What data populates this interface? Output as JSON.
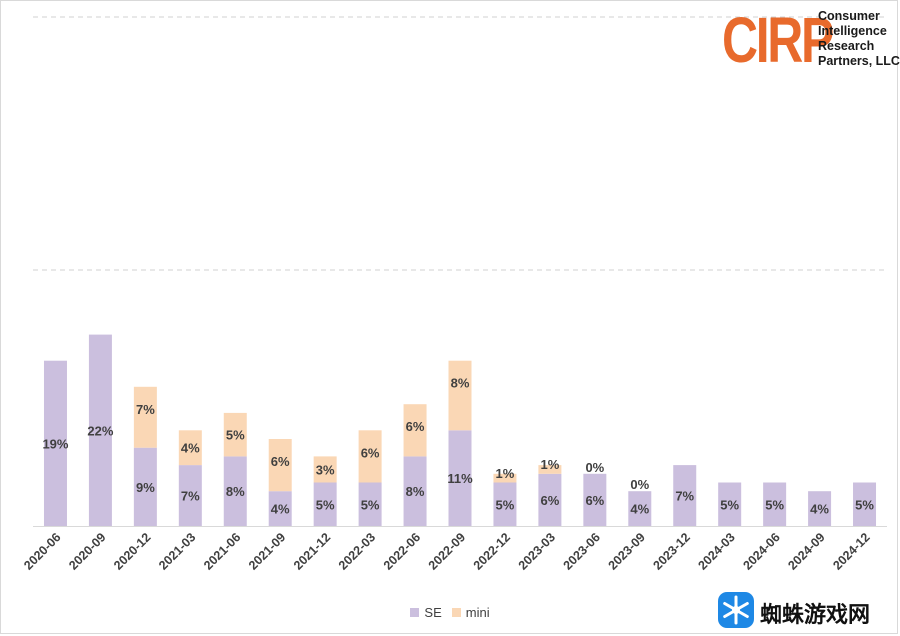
{
  "chart_data": {
    "type": "bar",
    "stacked": true,
    "categories": [
      "2020-06",
      "2020-09",
      "2020-12",
      "2021-03",
      "2021-06",
      "2021-09",
      "2021-12",
      "2022-03",
      "2022-06",
      "2022-09",
      "2022-12",
      "2023-03",
      "2023-06",
      "2023-09",
      "2023-12",
      "2024-03",
      "2024-06",
      "2024-09",
      "2024-12"
    ],
    "series": [
      {
        "name": "SE",
        "color": "#cbbfde",
        "values": [
          19,
          22,
          9,
          7,
          8,
          4,
          5,
          5,
          8,
          11,
          5,
          6,
          6,
          4,
          7,
          5,
          5,
          4,
          5
        ],
        "labels": [
          "19%",
          "22%",
          "9%",
          "7%",
          "8%",
          "4%",
          "5%",
          "5%",
          "8%",
          "11%",
          "5%",
          "6%",
          "6%",
          "4%",
          "7%",
          "5%",
          "5%",
          "4%",
          "5%"
        ]
      },
      {
        "name": "mini",
        "color": "#fad7b5",
        "values": [
          0,
          0,
          7,
          4,
          5,
          6,
          3,
          6,
          6,
          8,
          1,
          1,
          0,
          0,
          0,
          0,
          0,
          0,
          0
        ],
        "labels": [
          "",
          "",
          "7%",
          "4%",
          "5%",
          "6%",
          "3%",
          "6%",
          "6%",
          "8%",
          "1%",
          "1%",
          "0%",
          "0%",
          "",
          "",
          "",
          "",
          ""
        ]
      }
    ],
    "ylim": [
      0,
      50
    ],
    "gridlines": "dashed",
    "legend_position": "bottom",
    "title": "",
    "xlabel": "",
    "ylabel": ""
  },
  "logo": {
    "mark": "CIRP",
    "lines": [
      "Consumer",
      "Intelligence",
      "Research",
      "Partners, LLC"
    ],
    "color": "#e86a2c"
  },
  "legend": {
    "items": [
      {
        "name": "SE",
        "color": "#cbbfde"
      },
      {
        "name": "mini",
        "color": "#fad7b5"
      }
    ]
  },
  "watermark": {
    "text": "蜘蛛游戏网",
    "icon": "spider-snowflake-icon",
    "icon_color": "#1e88e5"
  }
}
